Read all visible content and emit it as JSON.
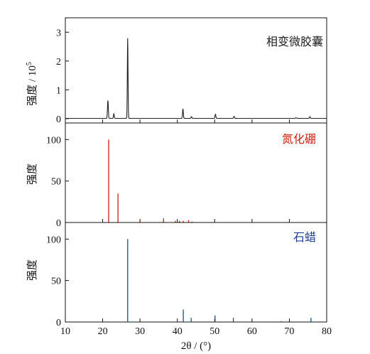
{
  "chart_data": [
    {
      "type": "line",
      "panel": "top",
      "title": "相变微胶囊",
      "title_color": "#222222",
      "line_color": "#222222",
      "ylabel": "强度 / 10",
      "ylabel_exponent": "5",
      "ylim": [
        -0.15,
        3.5
      ],
      "yticks": [
        0,
        1,
        2,
        3
      ],
      "xlim": [
        10,
        80
      ],
      "peaks": [
        {
          "x": 21.4,
          "y": 0.62,
          "w": 0.16
        },
        {
          "x": 23.0,
          "y": 0.16,
          "w": 0.15
        },
        {
          "x": 26.7,
          "y": 2.78,
          "w": 0.13
        },
        {
          "x": 41.5,
          "y": 0.33,
          "w": 0.15
        },
        {
          "x": 43.8,
          "y": 0.06,
          "w": 0.15
        },
        {
          "x": 50.2,
          "y": 0.14,
          "w": 0.16
        },
        {
          "x": 55.2,
          "y": 0.07,
          "w": 0.16
        },
        {
          "x": 71.8,
          "y": 0.02,
          "w": 0.2
        },
        {
          "x": 75.5,
          "y": 0.06,
          "w": 0.16
        }
      ],
      "baseline": 0.01
    },
    {
      "type": "bar",
      "panel": "middle",
      "title": "氮化硼",
      "title_color": "#cc2211",
      "bar_color": "#cc2211",
      "ylabel": "强度",
      "ylim": [
        0,
        120
      ],
      "yticks": [
        0,
        50,
        100
      ],
      "xlim": [
        10,
        80
      ],
      "x": [
        21.6,
        24.1,
        30.0,
        36.3,
        39.5,
        40.6,
        41.6,
        43.0,
        43.9
      ],
      "values": [
        100,
        35,
        2,
        5,
        2,
        2,
        2,
        3,
        1
      ]
    },
    {
      "type": "bar",
      "panel": "bottom",
      "title": "石蜡",
      "title_color": "#1f3f8f",
      "bar_color": "#1f4f7f",
      "ylabel": "强度",
      "xlabel": "2θ / (°)",
      "ylim": [
        0,
        120
      ],
      "yticks": [
        0,
        50,
        100
      ],
      "xlim": [
        10,
        80
      ],
      "xticks": [
        10,
        20,
        30,
        40,
        50,
        60,
        70,
        80
      ],
      "x": [
        26.7,
        41.6,
        43.7,
        50.1,
        55.0,
        59.9,
        67.8,
        75.8
      ],
      "values": [
        100,
        15,
        5,
        8,
        5,
        1,
        1,
        5
      ]
    }
  ]
}
